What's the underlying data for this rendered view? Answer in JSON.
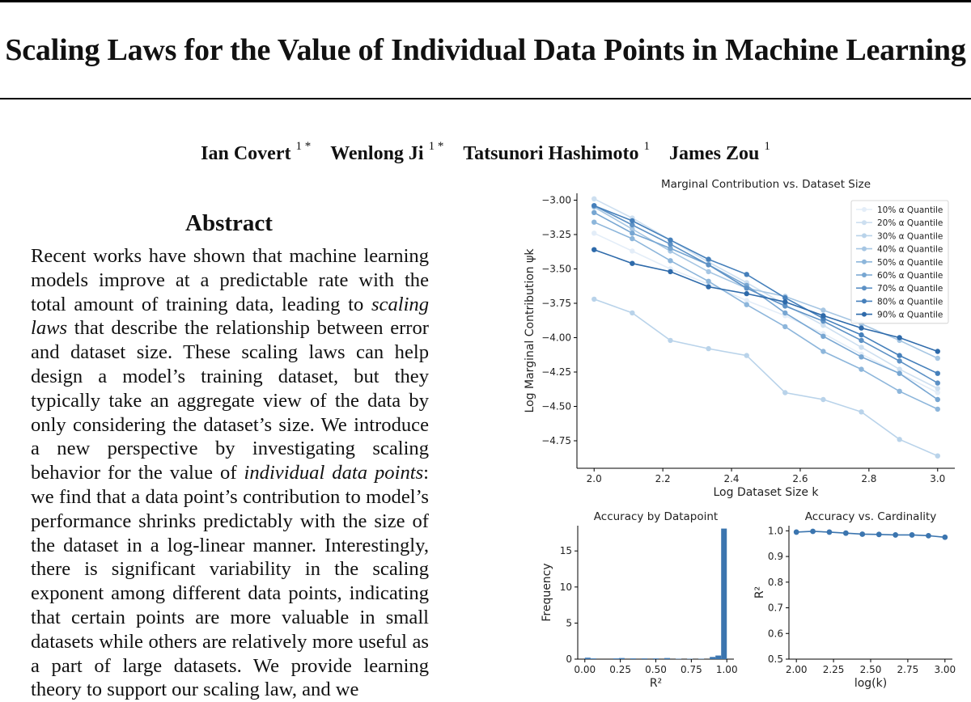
{
  "paper": {
    "title": "Scaling Laws for the Value of Individual Data Points in Machine Learning",
    "authors": [
      {
        "name": "Ian Covert",
        "affil": "1 *"
      },
      {
        "name": "Wenlong Ji",
        "affil": "1 *"
      },
      {
        "name": "Tatsunori Hashimoto",
        "affil": "1"
      },
      {
        "name": "James Zou",
        "affil": "1"
      }
    ]
  },
  "abstract": {
    "heading": "Abstract",
    "p1": "Recent works have shown that machine learning models improve at a predictable rate with the total amount of training data, leading to ",
    "em1": "scaling laws",
    "p2": " that describe the relationship between error and dataset size. These scaling laws can help design a model’s training dataset, but they typically take an aggregate view of the data by only considering the dataset’s size. We introduce a new perspective by investigating scaling behavior for the value of ",
    "em2": "individual data points",
    "p3": ": we find that a data point’s contribution to model’s performance shrinks pre­dictably with the size of the dataset in a log-linear manner. Interestingly, there is significant variabil­ity in the scaling exponent among different data points, indicating that certain points are more valu­able in small datasets while others are relatively more useful as a part of large datasets. We provide learning theory to support our scaling law, and we"
  },
  "chart_data": [
    {
      "type": "line",
      "title": "Marginal Contribution vs. Dataset Size",
      "xlabel": "Log Dataset Size k",
      "ylabel": "Log Marginal Contribution ψk",
      "xlim": [
        1.95,
        3.05
      ],
      "ylim": [
        -4.95,
        -2.95
      ],
      "xticks": [
        2.0,
        2.2,
        2.4,
        2.6,
        2.8,
        3.0
      ],
      "xtick_labels": [
        "2.0",
        "2.2",
        "2.4",
        "2.6",
        "2.8",
        "3.0"
      ],
      "yticks": [
        -3.0,
        -3.25,
        -3.5,
        -3.75,
        -4.0,
        -4.25,
        -4.5,
        -4.75
      ],
      "ytick_labels": [
        "−3.00",
        "−3.25",
        "−3.50",
        "−3.75",
        "−4.00",
        "−4.25",
        "−4.50",
        "−4.75"
      ],
      "x": [
        2.0,
        2.111,
        2.222,
        2.333,
        2.444,
        2.556,
        2.667,
        2.778,
        2.889,
        3.0
      ],
      "legend_position": "top-right",
      "series": [
        {
          "name": "10% α Quantile",
          "color": "#e3edf8",
          "values": [
            -3.24,
            -3.37,
            -3.5,
            -3.61,
            -3.73,
            -3.84,
            -3.97,
            -4.12,
            -4.26,
            -4.4
          ]
        },
        {
          "name": "20% α Quantile",
          "color": "#cddff0",
          "values": [
            -2.99,
            -3.13,
            -3.29,
            -3.45,
            -3.6,
            -3.76,
            -3.91,
            -4.07,
            -4.23,
            -4.37
          ]
        },
        {
          "name": "30% α Quantile",
          "color": "#b9d3ea",
          "values": [
            -3.72,
            -3.82,
            -4.02,
            -4.08,
            -4.13,
            -4.4,
            -4.45,
            -4.54,
            -4.74,
            -4.86
          ]
        },
        {
          "name": "40% α Quantile",
          "color": "#a6c6e3",
          "values": [
            -3.05,
            -3.21,
            -3.37,
            -3.52,
            -3.64,
            -3.7,
            -3.8,
            -3.9,
            -4.02,
            -4.15
          ]
        },
        {
          "name": "50% α Quantile",
          "color": "#8db6db",
          "values": [
            -3.16,
            -3.28,
            -3.44,
            -3.59,
            -3.76,
            -3.92,
            -4.1,
            -4.23,
            -4.39,
            -4.52
          ]
        },
        {
          "name": "60% α Quantile",
          "color": "#77a6d2",
          "values": [
            -3.09,
            -3.24,
            -3.35,
            -3.47,
            -3.62,
            -3.82,
            -3.99,
            -4.14,
            -4.26,
            -4.45
          ]
        },
        {
          "name": "70% α Quantile",
          "color": "#5d91c5",
          "values": [
            -3.04,
            -3.18,
            -3.32,
            -3.47,
            -3.64,
            -3.77,
            -3.88,
            -4.02,
            -4.17,
            -4.33
          ]
        },
        {
          "name": "80% α Quantile",
          "color": "#4680bb",
          "values": [
            -3.04,
            -3.15,
            -3.29,
            -3.43,
            -3.54,
            -3.71,
            -3.86,
            -3.98,
            -4.13,
            -4.26
          ]
        },
        {
          "name": "90% α Quantile",
          "color": "#2e6aaa",
          "values": [
            -3.36,
            -3.46,
            -3.52,
            -3.63,
            -3.68,
            -3.74,
            -3.84,
            -3.93,
            -4.0,
            -4.1
          ]
        }
      ]
    },
    {
      "type": "bar",
      "title": "Accuracy by Datapoint",
      "xlabel": "R²",
      "ylabel": "Frequency",
      "color": "#3b75af",
      "xlim": [
        -0.05,
        1.05
      ],
      "ylim": [
        0,
        18.5
      ],
      "xticks": [
        0.0,
        0.25,
        0.5,
        0.75,
        1.0
      ],
      "xtick_labels": [
        "0.00",
        "0.25",
        "0.50",
        "0.75",
        "1.00"
      ],
      "yticks": [
        0,
        5,
        10,
        15
      ],
      "ytick_labels": [
        "0",
        "5",
        "10",
        "15"
      ],
      "bin_width": 0.04,
      "bin_starts": [
        0.0,
        0.04,
        0.2,
        0.24,
        0.32,
        0.4,
        0.48,
        0.56,
        0.64,
        0.72,
        0.8,
        0.88,
        0.92,
        0.96
      ],
      "values": [
        0.2,
        0.1,
        0.1,
        0.15,
        0.1,
        0.1,
        0.1,
        0.15,
        0.05,
        0.05,
        0.05,
        0.3,
        0.5,
        18.1
      ]
    },
    {
      "type": "line",
      "title": "Accuracy vs. Cardinality",
      "xlabel": "log(k)",
      "ylabel": "R²",
      "color": "#3b75af",
      "xlim": [
        1.95,
        3.05
      ],
      "ylim": [
        0.5,
        1.02
      ],
      "xticks": [
        2.0,
        2.25,
        2.5,
        2.75,
        3.0
      ],
      "xtick_labels": [
        "2.00",
        "2.25",
        "2.50",
        "2.75",
        "3.00"
      ],
      "yticks": [
        0.5,
        0.6,
        0.7,
        0.8,
        0.9,
        1.0
      ],
      "ytick_labels": [
        "0.5",
        "0.6",
        "0.7",
        "0.8",
        "0.9",
        "1.0"
      ],
      "x": [
        2.0,
        2.111,
        2.222,
        2.333,
        2.444,
        2.556,
        2.667,
        2.778,
        2.889,
        3.0
      ],
      "values": [
        0.995,
        0.998,
        0.995,
        0.991,
        0.987,
        0.986,
        0.984,
        0.984,
        0.981,
        0.975
      ]
    }
  ]
}
